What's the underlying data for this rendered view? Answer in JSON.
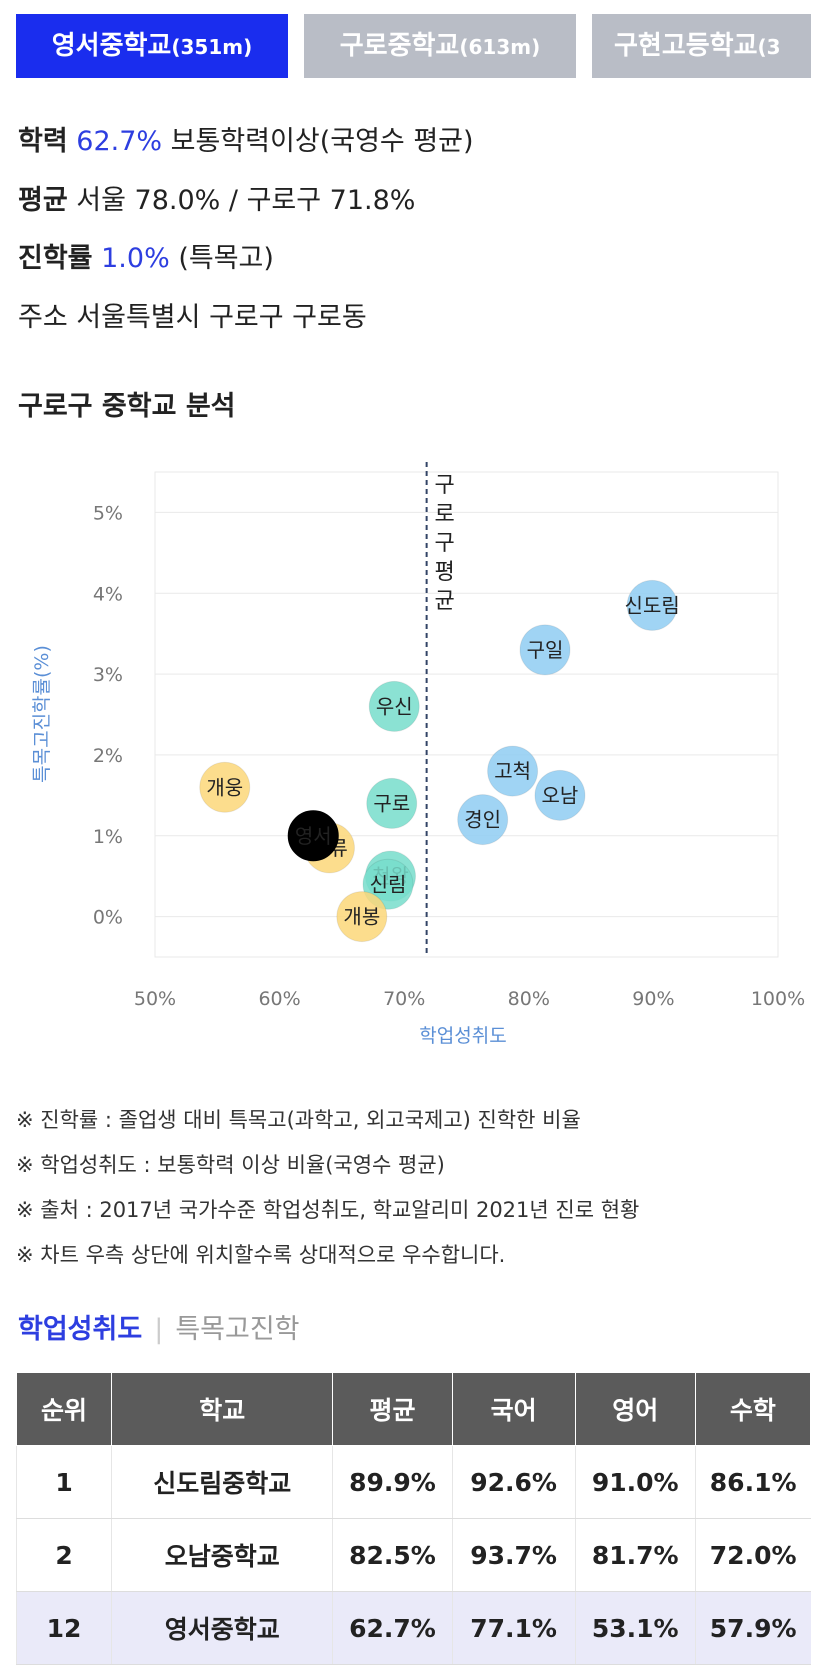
{
  "tabs": [
    {
      "name": "영서중학교",
      "dist": "(351m)",
      "active": true
    },
    {
      "name": "구로중학교",
      "dist": "(613m)",
      "active": false
    },
    {
      "name": "구현고등학교",
      "dist": "(3",
      "active": false
    }
  ],
  "info": {
    "achievement_key": "학력",
    "achievement_value": "62.7%",
    "achievement_desc": "보통학력이상(국영수 평균)",
    "avg_key": "평균",
    "avg_value": "서울 78.0% / 구로구 71.8%",
    "advance_key": "진학률",
    "advance_value": "1.0%",
    "advance_desc": "(특목고)",
    "addr_key": "주소",
    "addr_value": "서울특별시 구로구 구로동"
  },
  "section_title": "구로구 중학교 분석",
  "chart_data": {
    "type": "scatter",
    "xlabel": "학업성취도",
    "ylabel": "특목고진학률(%)",
    "xlim": [
      50,
      100
    ],
    "ylim": [
      -0.5,
      5.5
    ],
    "xticks": [
      "50%",
      "60%",
      "70%",
      "80%",
      "90%",
      "100%"
    ],
    "yticks": [
      "0%",
      "1%",
      "2%",
      "3%",
      "4%",
      "5%"
    ],
    "ytick_values": [
      0,
      1,
      2,
      3,
      4,
      5
    ],
    "xtick_values": [
      50,
      60,
      70,
      80,
      90,
      100
    ],
    "reference_line": {
      "x": 71.8,
      "label": "구로구평균"
    },
    "colors": {
      "blue": "#8fcdf2",
      "teal": "#77ddcb",
      "yellow": "#fbd779",
      "highlight": "#000000"
    },
    "points": [
      {
        "label": "신도림",
        "x": 89.9,
        "y": 3.85,
        "group": "blue"
      },
      {
        "label": "구일",
        "x": 81.3,
        "y": 3.3,
        "group": "blue"
      },
      {
        "label": "고척",
        "x": 78.7,
        "y": 1.8,
        "group": "blue"
      },
      {
        "label": "오남",
        "x": 82.5,
        "y": 1.5,
        "group": "blue"
      },
      {
        "label": "경인",
        "x": 76.3,
        "y": 1.2,
        "group": "blue"
      },
      {
        "label": "우신",
        "x": 69.2,
        "y": 2.6,
        "group": "teal"
      },
      {
        "label": "구로",
        "x": 69.0,
        "y": 1.4,
        "group": "teal"
      },
      {
        "label": "천왕",
        "x": 68.9,
        "y": 0.5,
        "group": "teal"
      },
      {
        "label": "신림",
        "x": 68.7,
        "y": 0.4,
        "group": "teal"
      },
      {
        "label": "개웅",
        "x": 55.6,
        "y": 1.6,
        "group": "yellow"
      },
      {
        "label": "세류",
        "x": 64.0,
        "y": 0.85,
        "group": "yellow"
      },
      {
        "label": "개봉",
        "x": 66.6,
        "y": 0.0,
        "group": "yellow"
      },
      {
        "label": "영서",
        "x": 62.7,
        "y": 1.0,
        "group": "highlight"
      }
    ]
  },
  "notes": [
    "※ 진학률 : 졸업생 대비 특목고(과학고, 외고국제고) 진학한 비율",
    "※ 학업성취도 : 보통학력 이상 비율(국영수 평균)",
    "※ 출처 : 2017년 국가수준 학업성취도, 학교알리미 2021년 진로 현황",
    "※ 차트 우측 상단에 위치할수록 상대적으로 우수합니다."
  ],
  "subtabs": {
    "active": "학업성취도",
    "inactive": "특목고진학"
  },
  "table": {
    "headers": [
      "순위",
      "학교",
      "평균",
      "국어",
      "영어",
      "수학"
    ],
    "rows": [
      [
        "1",
        "신도림중학교",
        "89.9%",
        "92.6%",
        "91.0%",
        "86.1%"
      ],
      [
        "2",
        "오남중학교",
        "82.5%",
        "93.7%",
        "81.7%",
        "72.0%"
      ],
      [
        "12",
        "영서중학교",
        "62.7%",
        "77.1%",
        "53.1%",
        "57.9%"
      ]
    ]
  }
}
